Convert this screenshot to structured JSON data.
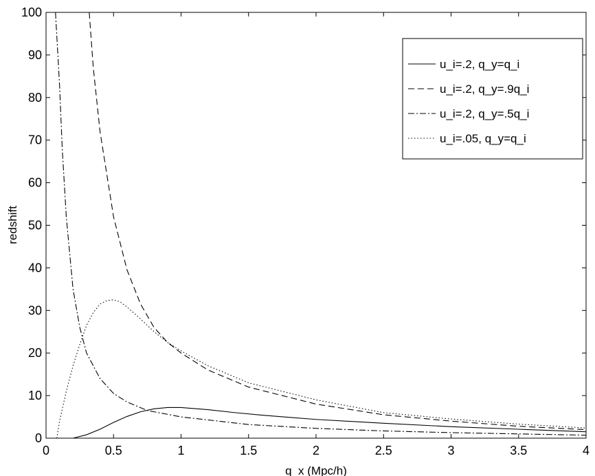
{
  "chart_data": {
    "type": "line",
    "xlabel": "q_x   (Mpc/h)",
    "ylabel": "redshift",
    "xlim": [
      0,
      4
    ],
    "ylim": [
      0,
      100
    ],
    "xticks": [
      0,
      0.5,
      1,
      1.5,
      2,
      2.5,
      3,
      3.5,
      4
    ],
    "xtick_labels": [
      "0",
      "0.5",
      "1",
      "1.5",
      "2",
      "2.5",
      "3",
      "3.5",
      "4"
    ],
    "yticks": [
      0,
      10,
      20,
      30,
      40,
      50,
      60,
      70,
      80,
      90,
      100
    ],
    "ytick_labels": [
      "0",
      "10",
      "20",
      "30",
      "40",
      "50",
      "60",
      "70",
      "80",
      "90",
      "100"
    ],
    "grid": false,
    "legend_position": "top-right",
    "series": [
      {
        "name": "u_i=.2, q_y=q_i",
        "line_style": "solid",
        "color": "#000000",
        "x": [
          0.2,
          0.3,
          0.4,
          0.5,
          0.6,
          0.7,
          0.8,
          0.9,
          1.0,
          1.2,
          1.4,
          1.6,
          1.8,
          2.0,
          2.5,
          3.0,
          3.5,
          4.0
        ],
        "y": [
          0.0,
          0.8,
          2.1,
          3.7,
          5.1,
          6.2,
          6.9,
          7.2,
          7.2,
          6.7,
          6.0,
          5.4,
          4.9,
          4.4,
          3.5,
          2.7,
          2.1,
          1.5
        ]
      },
      {
        "name": "u_i=.2, q_y=.9q_i",
        "line_style": "dashed",
        "color": "#000000",
        "x": [
          0.32,
          0.35,
          0.4,
          0.45,
          0.5,
          0.6,
          0.7,
          0.8,
          0.9,
          1.0,
          1.2,
          1.5,
          2.0,
          2.5,
          3.0,
          3.5,
          4.0
        ],
        "y": [
          100,
          87,
          72,
          62,
          52,
          39.5,
          31.5,
          26,
          22.5,
          20,
          16,
          12,
          8,
          5.5,
          4,
          2.8,
          2
        ]
      },
      {
        "name": "u_i=.2, q_y=.5q_i",
        "line_style": "dashdot",
        "color": "#000000",
        "x": [
          0.07,
          0.1,
          0.12,
          0.15,
          0.2,
          0.25,
          0.3,
          0.4,
          0.5,
          0.6,
          0.75,
          1.0,
          1.5,
          2.0,
          2.5,
          3.0,
          3.5,
          4.0
        ],
        "y": [
          100,
          83,
          68,
          52,
          35,
          26,
          20,
          14,
          10.5,
          8.5,
          6.5,
          5,
          3.2,
          2.3,
          1.7,
          1.3,
          1.0,
          0.7
        ]
      },
      {
        "name": "u_i=.05, q_y=q_i",
        "line_style": "dotted",
        "color": "#000000",
        "x": [
          0.08,
          0.1,
          0.15,
          0.2,
          0.25,
          0.3,
          0.35,
          0.4,
          0.45,
          0.5,
          0.55,
          0.6,
          0.7,
          0.8,
          0.9,
          1.0,
          1.2,
          1.5,
          2.0,
          2.5,
          3.0,
          3.5,
          4.0
        ],
        "y": [
          0,
          4,
          11,
          17,
          22,
          26.5,
          29.5,
          31.5,
          32.3,
          32.5,
          32,
          30.8,
          28,
          25,
          22.5,
          20.5,
          17,
          13,
          9,
          6,
          4.5,
          3.3,
          2.4
        ]
      }
    ]
  }
}
